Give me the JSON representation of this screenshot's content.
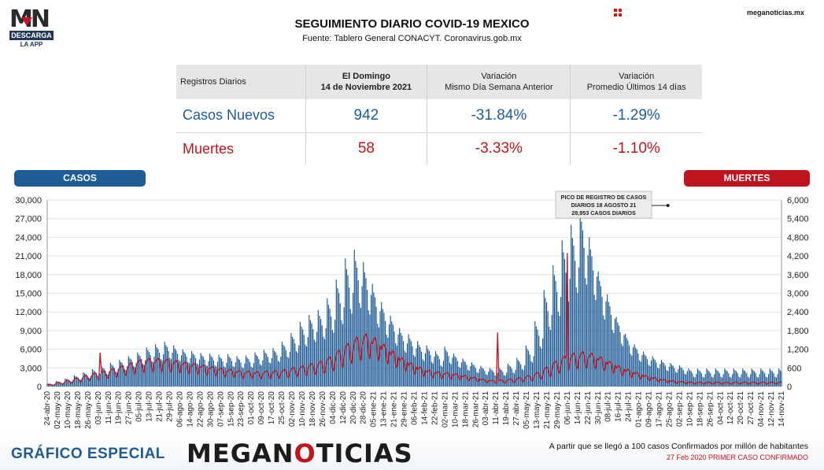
{
  "logo": {
    "mark": "MN",
    "bar": "DESCARGA",
    "sub": "LA APP"
  },
  "header": {
    "title": "SEGUIMIENTO DIARIO COVID-19 MEXICO",
    "subtitle": "Fuente: Tablero General CONACYT. Coronavirus.gob.mx",
    "site": "meganoticias.mx"
  },
  "table": {
    "headers": [
      "Registros Diarios",
      "El Domingo\n14 de Noviembre 2021",
      "Variación\nMismo Día Semana Anterior",
      "Variación\nPromedio Últimos 14 días"
    ],
    "rows": [
      {
        "label": "Casos Nuevos",
        "value": "942",
        "var_week": "-31.84%",
        "var_avg": "-1.29%"
      },
      {
        "label": "Muertes",
        "value": "58",
        "var_week": "-3.33%",
        "var_avg": "-1.10%"
      }
    ]
  },
  "pills": {
    "casos": "CASOS",
    "muertes": "MUERTES"
  },
  "footer": {
    "left": "GRÁFICO ESPECIAL",
    "brand_a": "MEGAN",
    "brand_b": "O",
    "brand_c": "TICIAS",
    "note1": "A partir que se llegó a 100 casos Confirmados por millón de habitantes",
    "note2": "27 Feb 2020 PRIMER CASO CONFIRMADO"
  },
  "colors": {
    "casos": "#1f5c96",
    "muertes": "#c0141f"
  },
  "chart_data": {
    "type": "bar",
    "x_start": "2020-04-24",
    "x_end": "2021-11-14",
    "left_axis": {
      "label": "CASOS",
      "ticks": [
        "30,000",
        "27,000",
        "24,000",
        "21,000",
        "18,000",
        "15,000",
        "12,000",
        "9,000",
        "6,000",
        "3,000",
        "0"
      ],
      "ylim": [
        0,
        30000
      ]
    },
    "right_axis": {
      "label": "MUERTES",
      "ticks": [
        "6,000",
        "5,400",
        "4,800",
        "4,200",
        "3,600",
        "3,000",
        "2,400",
        "1,800",
        "1,200",
        "600",
        "0"
      ],
      "ylim": [
        0,
        6000
      ]
    },
    "x_tick_labels": [
      "24-abr-20",
      "02-may-20",
      "10-may-20",
      "18-may-20",
      "26-may-20",
      "03-jun-20",
      "11-jun-20",
      "19-jun-20",
      "27-jun-20",
      "05-jul-20",
      "13-jul-20",
      "21-jul-20",
      "29-jul-20",
      "06-ago-20",
      "14-ago-20",
      "22-ago-20",
      "30-ago-20",
      "07-sep-20",
      "15-sep-20",
      "23-sep-20",
      "01-oct-20",
      "09-oct-20",
      "17-oct-20",
      "25-oct-20",
      "02-nov-20",
      "10-nov-20",
      "18-nov-20",
      "26-nov-20",
      "04-dic-20",
      "12-dic-20",
      "20-dic-20",
      "28-dic-20",
      "05-ene-21",
      "13-ene-21",
      "21-ene-21",
      "29-ene-21",
      "06-feb-21",
      "14-feb-21",
      "22-feb-21",
      "02-mar-21",
      "10-mar-21",
      "18-mar-21",
      "26-mar-21",
      "03-abr-21",
      "11-abr-21",
      "19-abr-21",
      "27-abr-21",
      "05-may-21",
      "13-may-21",
      "21-may-21",
      "29-may-21",
      "06-jun-21",
      "14-jun-21",
      "22-jun-21",
      "30-jun-21",
      "08-jul-21",
      "16-jul-21",
      "24-jul-21",
      "01-ago-21",
      "09-ago-21",
      "17-ago-21",
      "25-ago-21",
      "02-sep-21",
      "10-sep-21",
      "18-sep-21",
      "26-sep-21",
      "04-oct-21",
      "12-oct-21",
      "20-oct-21",
      "27-oct-21",
      "04-nov-21",
      "12-nov-21",
      "14-nov-21"
    ],
    "series": [
      {
        "name": "Casos",
        "axis": "left",
        "resolution": "weekly",
        "weekly_peak": [
          500,
          900,
          1300,
          1800,
          2300,
          2800,
          3300,
          3800,
          4300,
          4900,
          5500,
          6300,
          6800,
          7200,
          6600,
          6000,
          5700,
          5400,
          5300,
          5100,
          5200,
          4900,
          5000,
          5500,
          5900,
          6200,
          7200,
          8600,
          10400,
          11500,
          12300,
          14200,
          17200,
          20600,
          22000,
          20000,
          16500,
          13600,
          11400,
          9400,
          8400,
          7300,
          6600,
          5700,
          6400,
          5300,
          4500,
          3900,
          3300,
          3000,
          3100,
          3700,
          4600,
          6600,
          10500,
          15500,
          19500,
          23500,
          26000,
          28953,
          24000,
          18500,
          14800,
          11200,
          8500,
          6800,
          5600,
          4900,
          4300,
          3800,
          3400,
          2900
        ],
        "weekly_low": [
          200,
          400,
          600,
          800,
          1000,
          1200,
          1400,
          1700,
          2000,
          2400,
          2700,
          3000,
          3200,
          3300,
          3100,
          2900,
          2700,
          2500,
          2400,
          2300,
          2300,
          2200,
          2300,
          2600,
          2900,
          3100,
          3600,
          4200,
          4900,
          5500,
          5800,
          6500,
          7300,
          8300,
          9000,
          8300,
          6800,
          5600,
          4700,
          3900,
          3400,
          2900,
          2600,
          2200,
          2500,
          2100,
          1800,
          1500,
          1300,
          1200,
          1200,
          1500,
          1900,
          2800,
          4400,
          6600,
          8200,
          9800,
          10800,
          11500,
          10000,
          7800,
          6200,
          4700,
          3600,
          2900,
          2400,
          2100,
          1800,
          1600,
          1400,
          900
        ]
      },
      {
        "name": "Muertes",
        "axis": "right",
        "resolution": "weekly",
        "weekly_avg": [
          60,
          110,
          170,
          230,
          300,
          360,
          420,
          480,
          560,
          640,
          720,
          760,
          760,
          740,
          700,
          660,
          620,
          580,
          540,
          500,
          470,
          430,
          420,
          400,
          420,
          430,
          460,
          510,
          560,
          620,
          680,
          800,
          980,
          1160,
          1330,
          1420,
          1320,
          1140,
          960,
          780,
          640,
          520,
          440,
          400,
          380,
          350,
          300,
          250,
          200,
          170,
          180,
          200,
          240,
          300,
          380,
          520,
          680,
          820,
          900,
          940,
          900,
          800,
          680,
          560,
          460,
          380,
          300,
          240,
          190,
          160,
          140,
          120
        ],
        "spikes": [
          {
            "date": "2020-06-04",
            "value": 1090
          },
          {
            "date": "2021-04-08",
            "value": 1740
          },
          {
            "date": "2021-06-01",
            "value": 4290
          }
        ]
      }
    ],
    "annotation": {
      "lines": [
        "PICO DE REGISTRO DE CASOS",
        "DIARIOS 18 AGOSTO 21",
        "28,953 CASOS DIARIOS"
      ],
      "date": "2021-08-18",
      "value": 28953
    },
    "grid": "horizontal"
  }
}
